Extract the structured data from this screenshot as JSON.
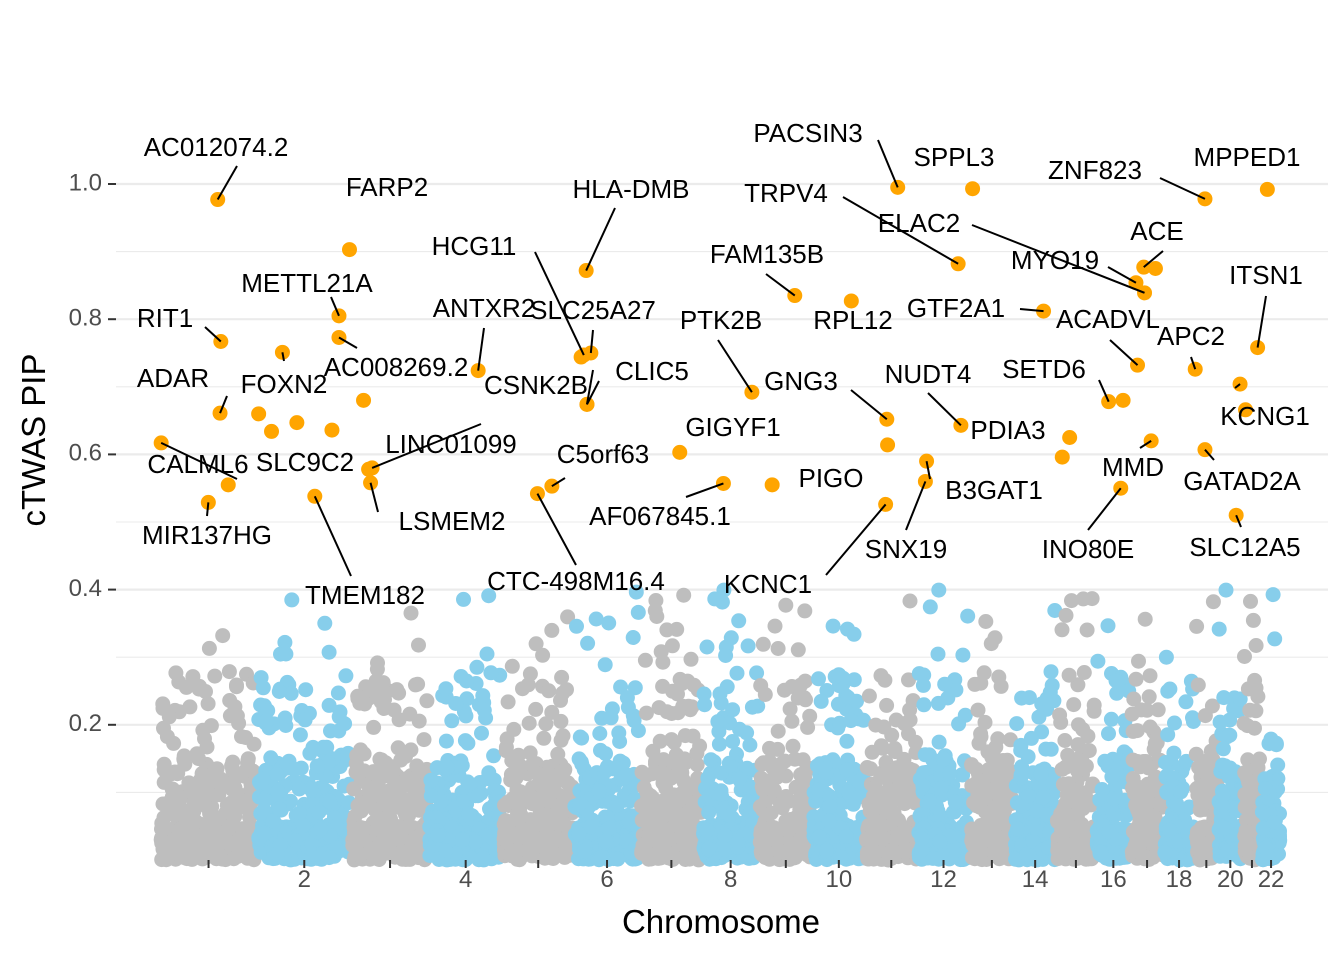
{
  "chart_data": {
    "type": "scatter",
    "subtype": "manhattan",
    "title": "",
    "xlabel": "Chromosome",
    "ylabel": "cTWAS PIP",
    "ylim": [
      0,
      1.08
    ],
    "y_ticks": [
      0.2,
      0.4,
      0.6,
      0.8,
      1.0
    ],
    "y_tick_labels": [
      "0.2",
      "0.4",
      "0.6",
      "0.8",
      "1.0"
    ],
    "x_tick_labels": [
      "2",
      "4",
      "6",
      "8",
      "10",
      "12",
      "14",
      "16",
      "18",
      "20",
      "22"
    ],
    "legend": "none",
    "grid": true,
    "chromosomes": [
      {
        "chr": 1,
        "start": 0,
        "end": 249
      },
      {
        "chr": 2,
        "start": 249,
        "end": 491
      },
      {
        "chr": 3,
        "start": 491,
        "end": 689
      },
      {
        "chr": 4,
        "start": 689,
        "end": 879
      },
      {
        "chr": 5,
        "start": 879,
        "end": 1061
      },
      {
        "chr": 6,
        "start": 1061,
        "end": 1232
      },
      {
        "chr": 7,
        "start": 1232,
        "end": 1391
      },
      {
        "chr": 8,
        "start": 1391,
        "end": 1536
      },
      {
        "chr": 9,
        "start": 1536,
        "end": 1674
      },
      {
        "chr": 10,
        "start": 1674,
        "end": 1808
      },
      {
        "chr": 11,
        "start": 1808,
        "end": 1943
      },
      {
        "chr": 12,
        "start": 1943,
        "end": 2076
      },
      {
        "chr": 13,
        "start": 2076,
        "end": 2191
      },
      {
        "chr": 14,
        "start": 2191,
        "end": 2298
      },
      {
        "chr": 15,
        "start": 2298,
        "end": 2400
      },
      {
        "chr": 16,
        "start": 2400,
        "end": 2490
      },
      {
        "chr": 17,
        "start": 2490,
        "end": 2573
      },
      {
        "chr": 18,
        "start": 2573,
        "end": 2654
      },
      {
        "chr": 19,
        "start": 2654,
        "end": 2713
      },
      {
        "chr": 20,
        "start": 2713,
        "end": 2777
      },
      {
        "chr": 21,
        "start": 2777,
        "end": 2824
      },
      {
        "chr": 22,
        "start": 2824,
        "end": 2875
      }
    ],
    "colors": {
      "odd_chromosome": "#bebebe",
      "even_chromosome": "#87ceeb",
      "highlight": "#ffa500",
      "grid": "#ebebeb",
      "tick": "#333333",
      "tick_text": "#4d4d4d",
      "leader_line": "#000000"
    },
    "background_points_note": "Thousands of genes with low PIP; rendered procedurally, denser near 0",
    "highlighted_genes": [
      {
        "gene": "AC012074.2",
        "pos": 148,
        "pip": 0.977
      },
      {
        "gene": "FARP2",
        "pos": 486,
        "pip": 0.903
      },
      {
        "gene": "METTL21A",
        "pos": 459,
        "pip": 0.805
      },
      {
        "gene": "RIT1",
        "pos": 156,
        "pip": 0.767
      },
      {
        "gene": "AC008269.2",
        "pos": 459,
        "pip": 0.773
      },
      {
        "gene": "FOXN2",
        "pos": 314,
        "pip": 0.751
      },
      {
        "gene": "ADAR",
        "pos": 154,
        "pip": 0.661
      },
      {
        "gene": "CALML6",
        "pos": 3,
        "pip": 0.617
      },
      {
        "gene": "MIR137HG",
        "pos": 124,
        "pip": 0.529
      },
      {
        "gene": "SLC9C2",
        "pos": 175,
        "pip": 0.555
      },
      {
        "gene": "TMEM182",
        "pos": 397,
        "pip": 0.538
      },
      {
        "gene": "LSMEM2",
        "pos": 540,
        "pip": 0.558
      },
      {
        "gene": "LINC01099",
        "pos": 544,
        "pip": 0.58
      },
      {
        "gene": "ANTXR2",
        "pos": 816,
        "pip": 0.724
      },
      {
        "gene": "CSNK2B",
        "pos": 1095,
        "pip": 0.674
      },
      {
        "gene": "HCG11",
        "pos": 1087,
        "pip": 0.747
      },
      {
        "gene": "HLA-DMB",
        "pos": 1093,
        "pip": 0.872
      },
      {
        "gene": "SLC25A27",
        "pos": 1105,
        "pip": 0.75
      },
      {
        "gene": "CLIC5",
        "pos": 1095,
        "pip": 0.674
      },
      {
        "gene": "C5orf63",
        "pos": 1005,
        "pip": 0.553
      },
      {
        "gene": "CTC-498M16.4",
        "pos": 968,
        "pip": 0.542
      },
      {
        "gene": "PTK2B",
        "pos": 1518,
        "pip": 0.692
      },
      {
        "gene": "FAM135B",
        "pos": 1628,
        "pip": 0.835
      },
      {
        "gene": "GIGYF1",
        "pos": 1333,
        "pip": 0.603
      },
      {
        "gene": "AF067845.1",
        "pos": 1445,
        "pip": 0.557
      },
      {
        "gene": "PIGO",
        "pos": 1570,
        "pip": 0.555
      },
      {
        "gene": "RPL12",
        "pos": 1773,
        "pip": 0.827
      },
      {
        "gene": "PACSIN3",
        "pos": 1892,
        "pip": 0.995
      },
      {
        "gene": "SPPL3",
        "pos": 2084,
        "pip": 0.993
      },
      {
        "gene": "TRPV4",
        "pos": 2047,
        "pip": 0.882
      },
      {
        "gene": "ELAC2",
        "pos": 2525,
        "pip": 0.839
      },
      {
        "gene": "GNG3",
        "pos": 1864,
        "pip": 0.652
      },
      {
        "gene": "NUDT4",
        "pos": 2054,
        "pip": 0.643
      },
      {
        "gene": "GTF2A1",
        "pos": 2266,
        "pip": 0.812
      },
      {
        "gene": "KCNC1",
        "pos": 1861,
        "pip": 0.526
      },
      {
        "gene": "SNX19",
        "pos": 1963,
        "pip": 0.56
      },
      {
        "gene": "B3GAT1",
        "pos": 1966,
        "pip": 0.59
      },
      {
        "gene": "PDIA3",
        "pos": 2333,
        "pip": 0.625
      },
      {
        "gene": "SETD6",
        "pos": 2433,
        "pip": 0.678
      },
      {
        "gene": "ZNF823",
        "pos": 2680,
        "pip": 0.978
      },
      {
        "gene": "MPPED1",
        "pos": 2840,
        "pip": 0.992
      },
      {
        "gene": "MYO19",
        "pos": 2503,
        "pip": 0.854
      },
      {
        "gene": "ACE",
        "pos": 2523,
        "pip": 0.877
      },
      {
        "gene": "ACADVL",
        "pos": 2507,
        "pip": 0.732
      },
      {
        "gene": "APC2",
        "pos": 2655,
        "pip": 0.726
      },
      {
        "gene": "ITSN1",
        "pos": 2815,
        "pip": 0.758
      },
      {
        "gene": "KCNG1",
        "pos": 2770,
        "pip": 0.704
      },
      {
        "gene": "MMD",
        "pos": 2542,
        "pip": 0.62
      },
      {
        "gene": "GATAD2A",
        "pos": 2680,
        "pip": 0.607
      },
      {
        "gene": "INO80E",
        "pos": 2464,
        "pip": 0.55
      },
      {
        "gene": "SLC12A5",
        "pos": 2760,
        "pip": 0.51
      }
    ],
    "unlabeled_highlight_points": [
      {
        "pos": 253,
        "pip": 0.66
      },
      {
        "pos": 286,
        "pip": 0.634
      },
      {
        "pos": 351,
        "pip": 0.647
      },
      {
        "pos": 441,
        "pip": 0.636
      },
      {
        "pos": 522,
        "pip": 0.68
      },
      {
        "pos": 535,
        "pip": 0.578
      },
      {
        "pos": 1080,
        "pip": 0.744
      },
      {
        "pos": 1866,
        "pip": 0.614
      },
      {
        "pos": 2314,
        "pip": 0.596
      },
      {
        "pos": 2470,
        "pip": 0.68
      },
      {
        "pos": 2784,
        "pip": 0.666
      },
      {
        "pos": 2553,
        "pip": 0.875
      }
    ]
  }
}
